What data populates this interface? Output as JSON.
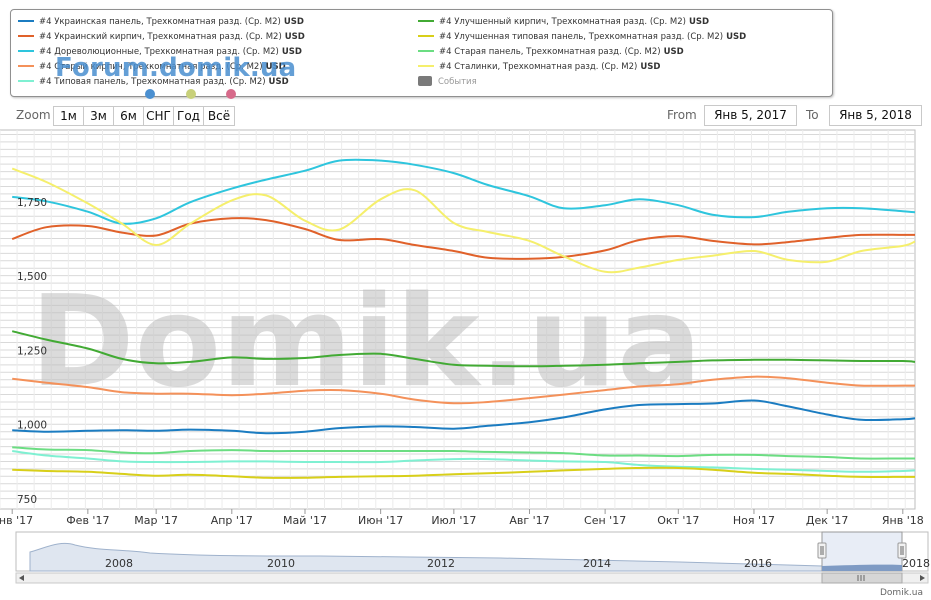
{
  "brand": "Forum.domik.ua",
  "dots": [
    "#4a8fd0",
    "#c8d07a",
    "#d76a8a"
  ],
  "zoom": {
    "label": "Zoom",
    "buttons": [
      "1м",
      "3м",
      "6м",
      "СНГ",
      "Год",
      "Всё"
    ]
  },
  "range": {
    "from_label": "From",
    "from_value": "Янв 5, 2017",
    "to_label": "To",
    "to_value": "Янв 5, 2018"
  },
  "legend": {
    "events_label": "События",
    "events_color": "#7a7a7a"
  },
  "watermark": "Domik.ua",
  "credit": "Domik.ua",
  "chart_data": {
    "type": "line",
    "x": [
      "2017-01-01",
      "2017-01-15",
      "2017-02-01",
      "2017-02-15",
      "2017-03-01",
      "2017-03-15",
      "2017-04-01",
      "2017-04-15",
      "2017-05-01",
      "2017-05-15",
      "2017-06-01",
      "2017-06-15",
      "2017-07-01",
      "2017-07-15",
      "2017-08-01",
      "2017-08-15",
      "2017-09-01",
      "2017-09-15",
      "2017-10-01",
      "2017-10-15",
      "2017-11-01",
      "2017-11-15",
      "2017-12-01",
      "2017-12-15",
      "2018-01-01",
      "2018-01-06"
    ],
    "x_tick_labels": [
      "Янв '17",
      "Фев '17",
      "Мар '17",
      "Апр '17",
      "Май '17",
      "Июн '17",
      "Июл '17",
      "Авг '17",
      "Сен '17",
      "Окт '17",
      "Ноя '17",
      "Дек '17",
      "Янв '18"
    ],
    "x_ticks": [
      "2017-01-01",
      "2017-02-01",
      "2017-03-01",
      "2017-04-01",
      "2017-05-01",
      "2017-06-01",
      "2017-07-01",
      "2017-08-01",
      "2017-09-01",
      "2017-10-01",
      "2017-11-01",
      "2017-12-01",
      "2018-01-01"
    ],
    "y_ticks": [
      750,
      1000,
      1250,
      1500,
      1750
    ],
    "y_tick_labels": [
      "750",
      "1,000",
      "1,250",
      "1,500",
      "1,750"
    ],
    "ylim": [
      740,
      2015
    ],
    "unit": "USD",
    "grid": true,
    "series": [
      {
        "name": "#4 Украинская панель, Трехкомнатная разд. (Ср. М2)",
        "color": "#1b7cc1",
        "values": [
          1005,
          1000,
          1003,
          1005,
          1003,
          1007,
          1003,
          995,
          1000,
          1012,
          1018,
          1016,
          1010,
          1020,
          1032,
          1048,
          1075,
          1090,
          1093,
          1095,
          1105,
          1085,
          1058,
          1040,
          1042,
          1045
        ]
      },
      {
        "name": "#4 Украинский кирпич, Трехкомнатная разд. (Ср. М2)",
        "color": "#e0612a",
        "values": [
          1648,
          1688,
          1692,
          1670,
          1660,
          1700,
          1718,
          1712,
          1682,
          1645,
          1648,
          1628,
          1608,
          1585,
          1582,
          1588,
          1610,
          1645,
          1658,
          1642,
          1630,
          1638,
          1652,
          1662,
          1662,
          1662
        ]
      },
      {
        "name": "#4 Дореволюционные, Трехкомнатная разд. (Ср. М2)",
        "color": "#2ec5dd",
        "values": [
          1790,
          1775,
          1740,
          1700,
          1718,
          1772,
          1818,
          1848,
          1878,
          1912,
          1912,
          1898,
          1870,
          1830,
          1792,
          1752,
          1762,
          1782,
          1762,
          1730,
          1722,
          1740,
          1752,
          1752,
          1742,
          1738
        ]
      },
      {
        "name": "#4 Старый кирпич, Трехкомнатная разд. (Ср. М2)",
        "color": "#f4915a",
        "values": [
          1178,
          1165,
          1150,
          1133,
          1128,
          1128,
          1123,
          1128,
          1138,
          1140,
          1128,
          1108,
          1096,
          1100,
          1113,
          1125,
          1140,
          1152,
          1160,
          1175,
          1185,
          1180,
          1165,
          1155,
          1155,
          1155
        ]
      },
      {
        "name": "#4 Типовая панель, Трехкомнатная разд. (Ср. М2)",
        "color": "#7ff0d2",
        "values": [
          935,
          920,
          910,
          900,
          898,
          898,
          900,
          900,
          898,
          898,
          898,
          903,
          908,
          908,
          903,
          900,
          898,
          888,
          882,
          880,
          875,
          872,
          868,
          865,
          868,
          870
        ]
      },
      {
        "name": "#4 Улучшенный кирпич, Трехкомнатная разд. (Ср. М2)",
        "color": "#42aa34",
        "values": [
          1338,
          1310,
          1280,
          1245,
          1230,
          1235,
          1250,
          1245,
          1248,
          1258,
          1262,
          1245,
          1225,
          1222,
          1220,
          1222,
          1225,
          1230,
          1235,
          1240,
          1242,
          1242,
          1240,
          1238,
          1238,
          1235
        ]
      },
      {
        "name": "#4 Улучшенная типовая панель, Трехкомнатная разд. (Ср. М2)",
        "color": "#d8cf19",
        "values": [
          872,
          868,
          865,
          858,
          852,
          855,
          850,
          845,
          845,
          848,
          850,
          852,
          857,
          860,
          865,
          870,
          875,
          878,
          878,
          872,
          862,
          858,
          852,
          848,
          848,
          848
        ]
      },
      {
        "name": "#4 Старая панель, Трехкомнатная разд. (Ср. М2)",
        "color": "#6bdd82",
        "values": [
          948,
          940,
          938,
          930,
          928,
          935,
          938,
          935,
          935,
          935,
          935,
          935,
          935,
          932,
          930,
          928,
          920,
          920,
          918,
          922,
          922,
          918,
          915,
          910,
          910,
          910
        ]
      },
      {
        "name": "#4 Сталинки, Трехкомнатная разд. (Ср. М2)",
        "color": "#f5ef6c",
        "values": [
          1885,
          1840,
          1768,
          1700,
          1628,
          1700,
          1778,
          1795,
          1710,
          1680,
          1782,
          1812,
          1702,
          1672,
          1642,
          1590,
          1538,
          1552,
          1578,
          1592,
          1608,
          1578,
          1572,
          1608,
          1625,
          1640
        ]
      }
    ],
    "navigator": {
      "years": [
        "2008",
        "2010",
        "2012",
        "2014",
        "2016",
        "2018"
      ]
    }
  }
}
